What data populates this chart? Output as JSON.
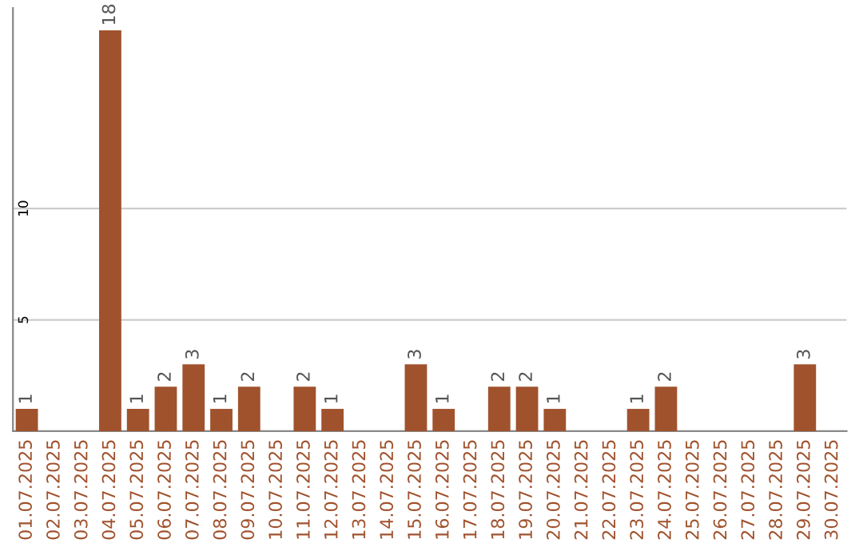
{
  "chart_data": {
    "type": "bar",
    "categories": [
      "01.07.2025",
      "02.07.2025",
      "03.07.2025",
      "04.07.2025",
      "05.07.2025",
      "06.07.2025",
      "07.07.2025",
      "08.07.2025",
      "09.07.2025",
      "10.07.2025",
      "11.07.2025",
      "12.07.2025",
      "13.07.2025",
      "14.07.2025",
      "15.07.2025",
      "16.07.2025",
      "17.07.2025",
      "18.07.2025",
      "19.07.2025",
      "20.07.2025",
      "21.07.2025",
      "22.07.2025",
      "23.07.2025",
      "24.07.2025",
      "25.07.2025",
      "26.07.2025",
      "27.07.2025",
      "28.07.2025",
      "29.07.2025",
      "30.07.2025"
    ],
    "values": [
      1,
      0,
      0,
      18,
      1,
      2,
      3,
      1,
      2,
      0,
      2,
      1,
      0,
      0,
      3,
      1,
      0,
      2,
      2,
      1,
      0,
      0,
      1,
      2,
      0,
      0,
      0,
      0,
      3,
      0
    ],
    "value_labels": [
      "1",
      null,
      null,
      "18",
      "1",
      "2",
      "3",
      "1",
      "2",
      null,
      "2",
      "1",
      null,
      null,
      "3",
      "1",
      null,
      "2",
      "2",
      "1",
      null,
      null,
      "1",
      "2",
      null,
      null,
      null,
      null,
      "3",
      null
    ],
    "color": "#a0522d",
    "ylim": [
      0,
      19
    ],
    "yticks": [
      5,
      10
    ],
    "grid": "y"
  }
}
